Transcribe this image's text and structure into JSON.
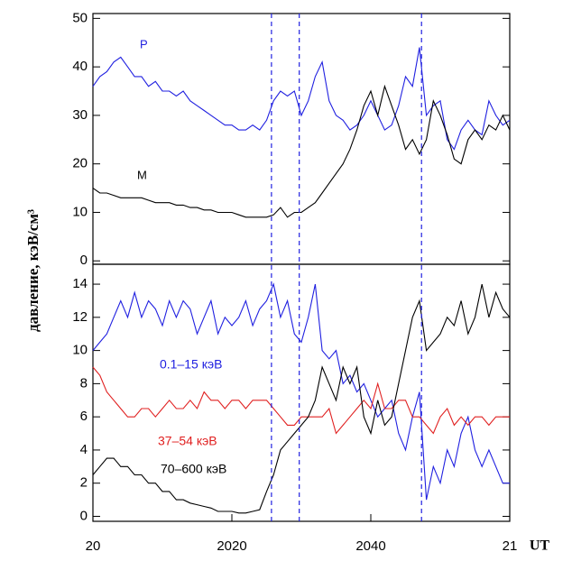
{
  "chart_data": [
    {
      "type": "line",
      "xlim": [
        0,
        60
      ],
      "ylim": [
        -0.7,
        51
      ],
      "yticks": [
        0,
        10,
        20,
        30,
        40,
        50
      ],
      "x": [
        0,
        1,
        2,
        3,
        4,
        5,
        6,
        7,
        8,
        9,
        10,
        11,
        12,
        13,
        14,
        15,
        16,
        17,
        18,
        19,
        20,
        21,
        22,
        23,
        24,
        25,
        26,
        27,
        28,
        29,
        30,
        31,
        32,
        33,
        34,
        35,
        36,
        37,
        38,
        39,
        40,
        41,
        42,
        43,
        44,
        45,
        46,
        47,
        48,
        49,
        50,
        51,
        52,
        53,
        54,
        55,
        56,
        57,
        58,
        59,
        60
      ],
      "series": [
        {
          "name": "P",
          "color": "#2020e0",
          "values": [
            36,
            38,
            39,
            41,
            42,
            40,
            38,
            38,
            36,
            37,
            35,
            35,
            34,
            35,
            33,
            32,
            31,
            30,
            29,
            28,
            28,
            27,
            27,
            28,
            27,
            29,
            33,
            35,
            34,
            35,
            30,
            33,
            38,
            41,
            33,
            30,
            29,
            27,
            28,
            30,
            33,
            30,
            27,
            28,
            32,
            38,
            36,
            44,
            30,
            32,
            33,
            25,
            23,
            27,
            29,
            27,
            26,
            33,
            30,
            28,
            29
          ]
        },
        {
          "name": "M",
          "color": "#000000",
          "values": [
            15,
            14,
            14,
            13.5,
            13,
            13,
            13,
            13,
            12.5,
            12,
            12,
            12,
            11.5,
            11.5,
            11,
            11,
            10.5,
            10.5,
            10,
            10,
            10,
            9.5,
            9,
            9,
            9,
            9,
            9.5,
            11,
            9,
            10,
            10,
            11,
            12,
            14,
            16,
            18,
            20,
            23,
            27,
            32,
            35,
            30,
            36,
            32,
            28,
            23,
            25,
            22,
            25,
            33,
            30,
            26,
            21,
            20,
            25,
            27,
            25,
            28,
            27,
            30,
            27
          ]
        }
      ]
    },
    {
      "type": "line",
      "xlim": [
        0,
        60
      ],
      "ylim": [
        -0.3,
        15.2
      ],
      "yticks": [
        0,
        2,
        4,
        6,
        8,
        10,
        12,
        14
      ],
      "xticks": [
        {
          "value": 0,
          "label": "20"
        },
        {
          "value": 20,
          "label": "2020"
        },
        {
          "value": 40,
          "label": "2040"
        },
        {
          "value": 60,
          "label": "21"
        }
      ],
      "xlabel": "UT",
      "ylabel": "давление, кэВ/см³",
      "vlines": [
        25.7,
        29.7,
        47.3
      ],
      "x": [
        0,
        1,
        2,
        3,
        4,
        5,
        6,
        7,
        8,
        9,
        10,
        11,
        12,
        13,
        14,
        15,
        16,
        17,
        18,
        19,
        20,
        21,
        22,
        23,
        24,
        25,
        26,
        27,
        28,
        29,
        30,
        31,
        32,
        33,
        34,
        35,
        36,
        37,
        38,
        39,
        40,
        41,
        42,
        43,
        44,
        45,
        46,
        47,
        48,
        49,
        50,
        51,
        52,
        53,
        54,
        55,
        56,
        57,
        58,
        59,
        60
      ],
      "series": [
        {
          "name": "0.1–15 кэВ",
          "color": "#2020e0",
          "values": [
            10,
            10.5,
            11,
            12,
            13,
            12,
            13.5,
            12,
            13,
            12.5,
            11.5,
            13,
            12,
            13,
            12.5,
            11,
            12,
            13,
            11,
            12,
            11.5,
            12,
            13,
            11.5,
            12.5,
            13,
            14,
            12,
            13,
            11,
            10.5,
            12,
            14,
            10,
            9.5,
            10,
            8,
            8.5,
            7.5,
            8,
            7,
            6,
            6.5,
            7,
            5,
            4,
            6,
            7.5,
            1,
            3,
            2,
            4,
            3,
            5,
            6,
            4,
            3,
            4,
            3,
            2,
            2
          ]
        },
        {
          "name": "37–54 кэВ",
          "color": "#e02020",
          "values": [
            9,
            8.5,
            7.5,
            7,
            6.5,
            6,
            6,
            6.5,
            6.5,
            6,
            6.5,
            7,
            6.5,
            6.5,
            7,
            6.5,
            7.5,
            7,
            7,
            6.5,
            7,
            7,
            6.5,
            7,
            7,
            7,
            6.5,
            6,
            5.5,
            5.5,
            6,
            6,
            6,
            6,
            6.5,
            5,
            5.5,
            6,
            6.5,
            7,
            6.5,
            8,
            6.5,
            6.5,
            7,
            7,
            6,
            6,
            5.5,
            5,
            6,
            6.5,
            5.5,
            6,
            5.5,
            6,
            6,
            5.5,
            6,
            6,
            6
          ]
        },
        {
          "name": "70–600 кэВ",
          "color": "#000000",
          "values": [
            2.5,
            3,
            3.5,
            3.5,
            3,
            3,
            2.5,
            2.5,
            2,
            2,
            1.5,
            1.5,
            1,
            1,
            0.8,
            0.7,
            0.6,
            0.5,
            0.3,
            0.3,
            0.3,
            0.2,
            0.2,
            0.3,
            0.4,
            1.5,
            2.5,
            4,
            4.5,
            5,
            5.5,
            6,
            7,
            9,
            8,
            7,
            9,
            8,
            9,
            6,
            5,
            7,
            5.5,
            6,
            8,
            10,
            12,
            13,
            10,
            10.5,
            11,
            12,
            11.5,
            13,
            11,
            12,
            14,
            12,
            13.5,
            12.5,
            12
          ]
        }
      ]
    }
  ]
}
